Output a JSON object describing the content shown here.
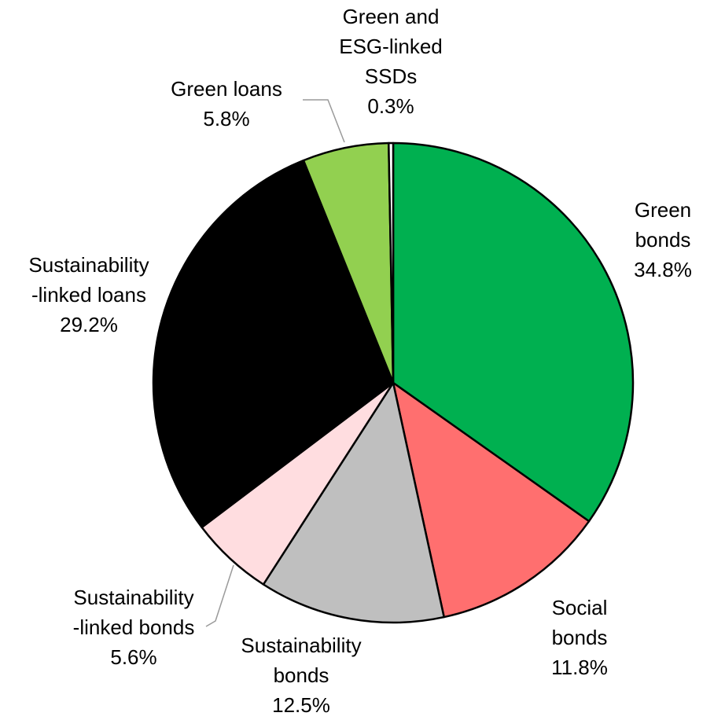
{
  "chart_data": {
    "type": "pie",
    "title": "",
    "slices": [
      {
        "label_lines": [
          "Green",
          "bonds"
        ],
        "pct": "34.8%",
        "value": 34.8,
        "color": "#00b050"
      },
      {
        "label_lines": [
          "Social",
          "bonds"
        ],
        "pct": "11.8%",
        "value": 11.8,
        "color": "#ff6f6f"
      },
      {
        "label_lines": [
          "Sustainability",
          "bonds"
        ],
        "pct": "12.5%",
        "value": 12.5,
        "color": "#bfbfbf"
      },
      {
        "label_lines": [
          "Sustainability",
          "-linked bonds"
        ],
        "pct": "5.6%",
        "value": 5.6,
        "color": "#ffdde0"
      },
      {
        "label_lines": [
          "Sustainability",
          "-linked loans"
        ],
        "pct": "29.2%",
        "value": 29.2,
        "color": "#000000"
      },
      {
        "label_lines": [
          "Green loans"
        ],
        "pct": "5.8%",
        "value": 5.8,
        "color": "#92d050"
      },
      {
        "label_lines": [
          "Green and",
          "ESG-linked",
          "SSDs"
        ],
        "pct": "0.3%",
        "value": 0.3,
        "color": "#ffffff"
      }
    ]
  }
}
